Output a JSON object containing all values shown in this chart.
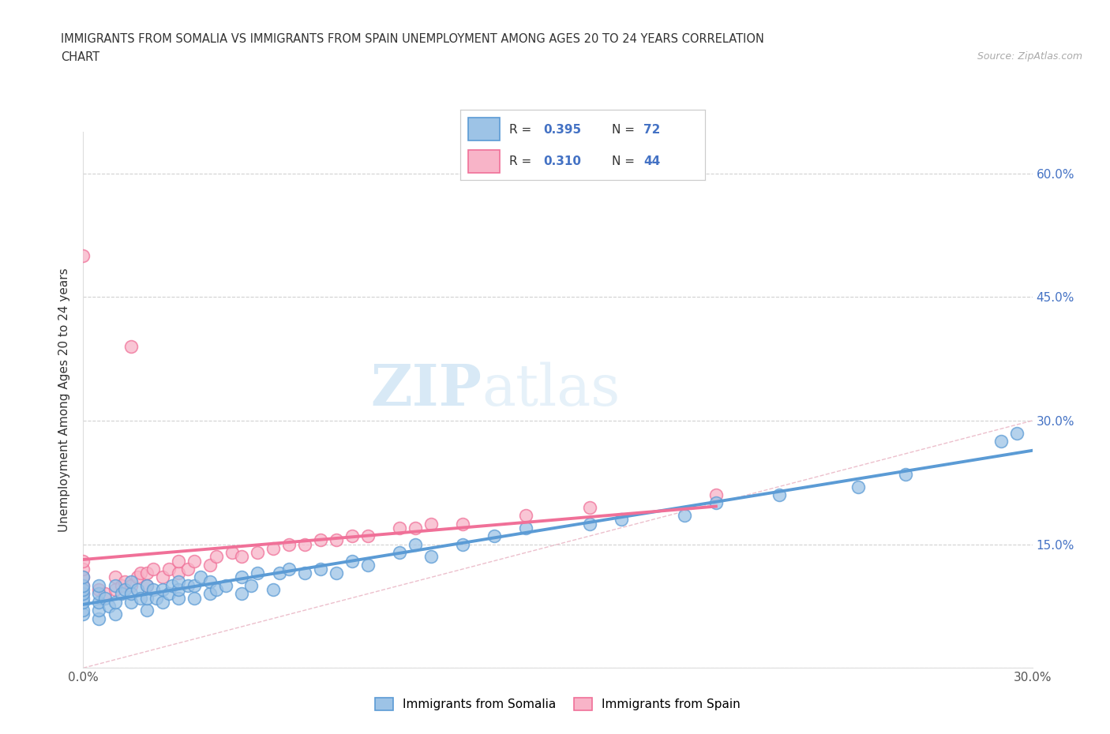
{
  "title_line1": "IMMIGRANTS FROM SOMALIA VS IMMIGRANTS FROM SPAIN UNEMPLOYMENT AMONG AGES 20 TO 24 YEARS CORRELATION",
  "title_line2": "CHART",
  "source_text": "Source: ZipAtlas.com",
  "ylabel": "Unemployment Among Ages 20 to 24 years",
  "xlim": [
    0.0,
    0.3
  ],
  "ylim": [
    0.0,
    0.65
  ],
  "x_ticks": [
    0.0,
    0.05,
    0.1,
    0.15,
    0.2,
    0.25,
    0.3
  ],
  "x_tick_labels": [
    "0.0%",
    "",
    "",
    "",
    "",
    "",
    "30.0%"
  ],
  "y_ticks_right": [
    0.0,
    0.15,
    0.3,
    0.45,
    0.6
  ],
  "y_tick_labels_right": [
    "",
    "15.0%",
    "30.0%",
    "45.0%",
    "60.0%"
  ],
  "somalia_color": "#5b9bd5",
  "somalia_color_fill": "#9dc3e6",
  "spain_color": "#f07098",
  "spain_color_fill": "#f8b4c8",
  "somalia_R": "0.395",
  "somalia_N": "72",
  "spain_R": "0.310",
  "spain_N": "44",
  "legend_label_somalia": "Immigrants from Somalia",
  "legend_label_spain": "Immigrants from Spain",
  "watermark_zip": "ZIP",
  "watermark_atlas": "atlas",
  "scatter_somalia_x": [
    0.0,
    0.0,
    0.0,
    0.0,
    0.0,
    0.0,
    0.0,
    0.0,
    0.005,
    0.005,
    0.005,
    0.005,
    0.005,
    0.007,
    0.008,
    0.01,
    0.01,
    0.01,
    0.012,
    0.013,
    0.015,
    0.015,
    0.015,
    0.017,
    0.018,
    0.02,
    0.02,
    0.02,
    0.022,
    0.023,
    0.025,
    0.025,
    0.027,
    0.028,
    0.03,
    0.03,
    0.03,
    0.033,
    0.035,
    0.035,
    0.037,
    0.04,
    0.04,
    0.042,
    0.045,
    0.05,
    0.05,
    0.053,
    0.055,
    0.06,
    0.062,
    0.065,
    0.07,
    0.075,
    0.08,
    0.085,
    0.09,
    0.1,
    0.105,
    0.11,
    0.12,
    0.13,
    0.14,
    0.16,
    0.17,
    0.19,
    0.2,
    0.22,
    0.245,
    0.26,
    0.29,
    0.295
  ],
  "scatter_somalia_y": [
    0.065,
    0.07,
    0.08,
    0.085,
    0.09,
    0.095,
    0.1,
    0.11,
    0.06,
    0.07,
    0.08,
    0.09,
    0.1,
    0.085,
    0.075,
    0.065,
    0.08,
    0.1,
    0.09,
    0.095,
    0.08,
    0.09,
    0.105,
    0.095,
    0.085,
    0.07,
    0.085,
    0.1,
    0.095,
    0.085,
    0.08,
    0.095,
    0.09,
    0.1,
    0.085,
    0.095,
    0.105,
    0.1,
    0.085,
    0.1,
    0.11,
    0.09,
    0.105,
    0.095,
    0.1,
    0.09,
    0.11,
    0.1,
    0.115,
    0.095,
    0.115,
    0.12,
    0.115,
    0.12,
    0.115,
    0.13,
    0.125,
    0.14,
    0.15,
    0.135,
    0.15,
    0.16,
    0.17,
    0.175,
    0.18,
    0.185,
    0.2,
    0.21,
    0.22,
    0.235,
    0.275,
    0.285
  ],
  "scatter_spain_x": [
    0.0,
    0.0,
    0.0,
    0.0,
    0.0,
    0.0,
    0.005,
    0.007,
    0.01,
    0.01,
    0.012,
    0.013,
    0.015,
    0.015,
    0.017,
    0.018,
    0.02,
    0.02,
    0.022,
    0.025,
    0.027,
    0.03,
    0.03,
    0.033,
    0.035,
    0.04,
    0.042,
    0.047,
    0.05,
    0.055,
    0.06,
    0.065,
    0.07,
    0.075,
    0.08,
    0.085,
    0.09,
    0.1,
    0.105,
    0.11,
    0.12,
    0.14,
    0.16,
    0.2
  ],
  "scatter_spain_y": [
    0.09,
    0.1,
    0.11,
    0.12,
    0.13,
    0.5,
    0.095,
    0.09,
    0.095,
    0.11,
    0.1,
    0.105,
    0.1,
    0.39,
    0.11,
    0.115,
    0.1,
    0.115,
    0.12,
    0.11,
    0.12,
    0.115,
    0.13,
    0.12,
    0.13,
    0.125,
    0.135,
    0.14,
    0.135,
    0.14,
    0.145,
    0.15,
    0.15,
    0.155,
    0.155,
    0.16,
    0.16,
    0.17,
    0.17,
    0.175,
    0.175,
    0.185,
    0.195,
    0.21
  ]
}
